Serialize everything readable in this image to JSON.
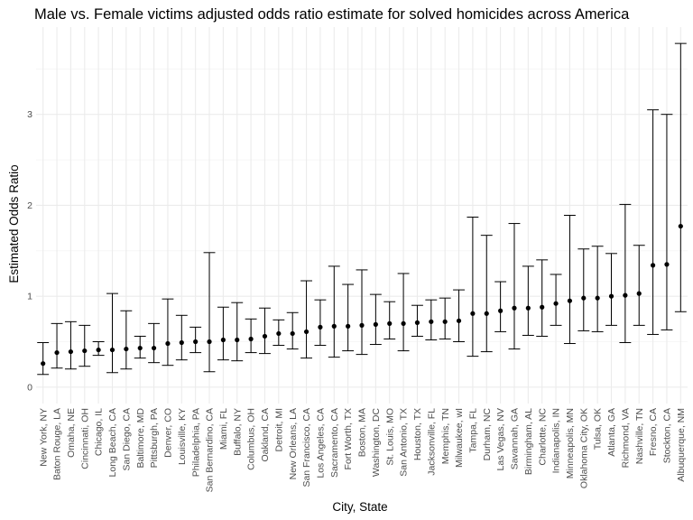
{
  "chart_data": {
    "type": "scatter",
    "title": "Male vs. Female victims adjusted odds ratio estimate for solved homicides across America",
    "xlabel": "City, State",
    "ylabel": "Estimated Odds Ratio",
    "ylim": [
      0,
      3.78
    ],
    "y_ticks": [
      0,
      1,
      2,
      3
    ],
    "y_tick_labels": [
      "0",
      "1",
      "2",
      "3"
    ],
    "grid": true,
    "legend": "none",
    "categories": [
      "New York, NY",
      "Baton Rouge, LA",
      "Omaha, NE",
      "Cincinnati, OH",
      "Chicago, IL",
      "Long Beach, CA",
      "San Diego, CA",
      "Baltimore, MD",
      "Pittsburgh, PA",
      "Denver, CO",
      "Louisville, KY",
      "Philadelphia, PA",
      "San Bernardino, CA",
      "Miami, FL",
      "Buffalo, NY",
      "Columbus, OH",
      "Oakland, CA",
      "Detroit, MI",
      "New Orleans, LA",
      "San Francisco, CA",
      "Los Angeles, CA",
      "Sacramento, CA",
      "Fort Worth, TX",
      "Boston, MA",
      "Washington, DC",
      "St. Louis, MO",
      "San Antonio, TX",
      "Houston, TX",
      "Jacksonville, FL",
      "Memphis, TN",
      "Milwaukee, wI",
      "Tampa, FL",
      "Durham, NC",
      "Las Vegas, NV",
      "Savannah, GA",
      "Birmingham, AL",
      "Charlotte, NC",
      "Indianapolis, IN",
      "Minneapolis, MN",
      "Oklahoma City, OK",
      "Tulsa, OK",
      "Atlanta, GA",
      "Richmond, VA",
      "Nashville, TN",
      "Fresno, CA",
      "Stockton, CA",
      "Albuquerque, NM"
    ],
    "estimate": [
      0.26,
      0.38,
      0.39,
      0.4,
      0.41,
      0.41,
      0.42,
      0.43,
      0.43,
      0.48,
      0.49,
      0.5,
      0.5,
      0.52,
      0.52,
      0.53,
      0.56,
      0.59,
      0.59,
      0.61,
      0.66,
      0.67,
      0.67,
      0.68,
      0.69,
      0.7,
      0.7,
      0.71,
      0.72,
      0.72,
      0.73,
      0.81,
      0.81,
      0.84,
      0.87,
      0.87,
      0.88,
      0.92,
      0.95,
      0.98,
      0.98,
      1.0,
      1.01,
      1.03,
      1.34,
      1.35,
      1.77
    ],
    "ci_low": [
      0.14,
      0.21,
      0.2,
      0.23,
      0.35,
      0.16,
      0.2,
      0.32,
      0.27,
      0.24,
      0.3,
      0.38,
      0.17,
      0.3,
      0.29,
      0.38,
      0.37,
      0.46,
      0.42,
      0.32,
      0.46,
      0.33,
      0.4,
      0.36,
      0.47,
      0.53,
      0.4,
      0.56,
      0.52,
      0.53,
      0.5,
      0.34,
      0.39,
      0.61,
      0.42,
      0.57,
      0.56,
      0.68,
      0.48,
      0.62,
      0.61,
      0.68,
      0.49,
      0.68,
      0.58,
      0.63,
      0.83
    ],
    "ci_high": [
      0.49,
      0.7,
      0.72,
      0.68,
      0.5,
      1.03,
      0.84,
      0.56,
      0.7,
      0.97,
      0.79,
      0.66,
      1.48,
      0.88,
      0.93,
      0.75,
      0.87,
      0.74,
      0.82,
      1.17,
      0.96,
      1.33,
      1.13,
      1.29,
      1.02,
      0.94,
      1.25,
      0.9,
      0.96,
      0.98,
      1.07,
      1.87,
      1.67,
      1.16,
      1.8,
      1.33,
      1.4,
      1.24,
      1.89,
      1.52,
      1.55,
      1.47,
      2.01,
      1.56,
      3.05,
      3.0,
      3.78
    ]
  }
}
